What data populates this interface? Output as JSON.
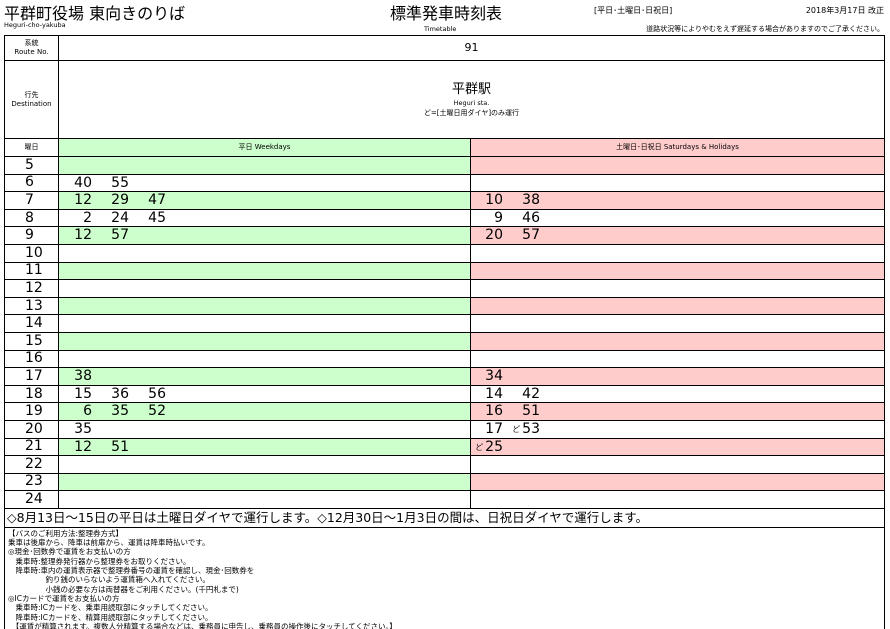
{
  "header": {
    "stop_name": "平群町役場 東向きのりば",
    "stop_romaji": "Heguri-cho-yakuba",
    "title": "標準発車時刻表",
    "title_en": "Timetable",
    "day_types": "[平日･土曜日･日祝日]",
    "revision": "2018年3月17日 改正",
    "delay_notice": "道路状況等によりやむをえず遅延する場合がありますのでご了承ください。"
  },
  "route": {
    "label_ja": "系統",
    "label_en": "Route No.",
    "value": "91"
  },
  "destination": {
    "label_ja": "行先",
    "label_en": "Destination",
    "name": "平群駅",
    "name_en": "Heguri sta.",
    "mark_note": "ど=[土曜日用ダイヤ]のみ運行"
  },
  "columns": {
    "hour_label": "曜日",
    "weekday": "平日  Weekdays",
    "holiday": "土曜日･日祝日  Saturdays & Holidays"
  },
  "colors": {
    "weekday": "#ccffcc",
    "holiday": "#ffcccc"
  },
  "rows": [
    {
      "hour": "5",
      "weekday": [],
      "holiday": []
    },
    {
      "hour": "6",
      "weekday": [
        "40",
        "55"
      ],
      "holiday": []
    },
    {
      "hour": "7",
      "weekday": [
        "12",
        "29",
        "47"
      ],
      "holiday": [
        "10",
        "38"
      ]
    },
    {
      "hour": "8",
      "weekday": [
        "2",
        "24",
        "45"
      ],
      "holiday": [
        "9",
        "46"
      ]
    },
    {
      "hour": "9",
      "weekday": [
        "12",
        "57"
      ],
      "holiday": [
        "20",
        "57"
      ]
    },
    {
      "hour": "10",
      "weekday": [],
      "holiday": []
    },
    {
      "hour": "11",
      "weekday": [],
      "holiday": []
    },
    {
      "hour": "12",
      "weekday": [],
      "holiday": []
    },
    {
      "hour": "13",
      "weekday": [],
      "holiday": []
    },
    {
      "hour": "14",
      "weekday": [],
      "holiday": []
    },
    {
      "hour": "15",
      "weekday": [],
      "holiday": []
    },
    {
      "hour": "16",
      "weekday": [],
      "holiday": []
    },
    {
      "hour": "17",
      "weekday": [
        "38"
      ],
      "holiday": [
        "34"
      ]
    },
    {
      "hour": "18",
      "weekday": [
        "15",
        "36",
        "56"
      ],
      "holiday": [
        "14",
        "42"
      ]
    },
    {
      "hour": "19",
      "weekday": [
        "6",
        "35",
        "52"
      ],
      "holiday": [
        "16",
        "51"
      ]
    },
    {
      "hour": "20",
      "weekday": [
        "35"
      ],
      "holiday": [
        "17",
        "ど53"
      ]
    },
    {
      "hour": "21",
      "weekday": [
        "12",
        "51"
      ],
      "holiday": [
        "ど25"
      ]
    },
    {
      "hour": "22",
      "weekday": [],
      "holiday": []
    },
    {
      "hour": "23",
      "weekday": [],
      "holiday": []
    },
    {
      "hour": "24",
      "weekday": [],
      "holiday": []
    }
  ],
  "special_notice": "◇8月13日～15日の平日は土曜日ダイヤで運行します。◇12月30日～1月3日の間は、日祝日ダイヤで運行します。",
  "notes": [
    "【バスのご利用方法:整理券方式】",
    "乗車は後扉から、降車は前扉から、運賃は降車時払いです。",
    "◎現金･回数券で運賃をお支払いの方",
    "　乗車時:整理券発行器から整理券をお取りください。",
    "　降車時:車内の運賃表示器で整理券番号の運賃を確認し、現金･回数券を",
    "　　　　　釣り銭のいらないよう運賃箱へ入れてください。",
    "　　　　　小銭の必要な方は両替器をご利用ください。(千円札まで)",
    "◎ICカードで運賃をお支払いの方",
    "　乗車時:ICカードを、乗車用読取部にタッチしてください。",
    "　降車時:ICカードを、精算用読取部にタッチしてください。",
    "　【運賃が精算されます。複数人分精算する場合などは、乗務員に申告し、乗務員の操作後にタッチしてください。】"
  ]
}
